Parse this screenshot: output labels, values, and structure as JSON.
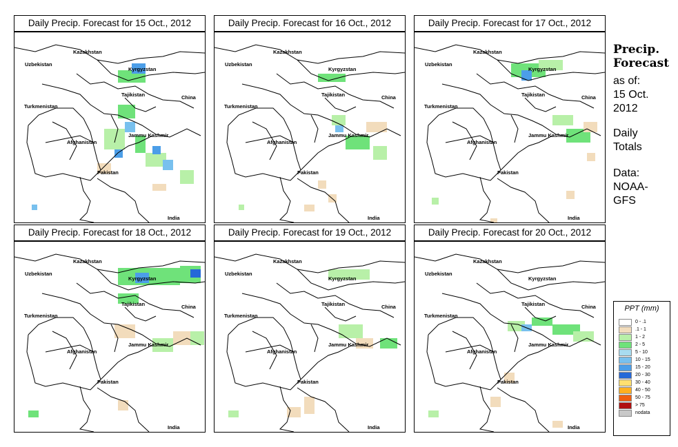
{
  "panels": [
    {
      "title": "Daily Precip. Forecast for  15 Oct., 2012"
    },
    {
      "title": "Daily Precip. Forecast for  16 Oct., 2012"
    },
    {
      "title": "Daily Precip. Forecast for  17 Oct., 2012"
    },
    {
      "title": "Daily Precip. Forecast for  18 Oct., 2012"
    },
    {
      "title": "Daily Precip. Forecast for  19 Oct., 2012"
    },
    {
      "title": "Daily Precip. Forecast for  20 Oct., 2012"
    }
  ],
  "regions": [
    "Kazakhstan",
    "Uzbekistan",
    "Kyrgyzstan",
    "Tajikistan",
    "China",
    "Turkmenistan",
    "Jammu Kashmir",
    "Afghanistan",
    "Pakistan",
    "India"
  ],
  "sidebar": {
    "title_line1": "Precip.",
    "title_line2": "Forecast",
    "asof": "as of:",
    "date1": "15 Oct.",
    "date2": "2012",
    "totals1": "Daily",
    "totals2": "Totals",
    "data1": "Data:",
    "data2": "NOAA-",
    "data3": "GFS"
  },
  "legend": {
    "title": "PPT (mm)",
    "items": [
      {
        "label": "0 - .1",
        "color": "#ffffff"
      },
      {
        "label": ".1 - 1",
        "color": "#f2dcbc"
      },
      {
        "label": "1 - 2",
        "color": "#b8f0a8"
      },
      {
        "label": "2 - 5",
        "color": "#6fe27a"
      },
      {
        "label": "5 - 10",
        "color": "#a8dcf0"
      },
      {
        "label": "10 - 15",
        "color": "#78c0ee"
      },
      {
        "label": "15 - 20",
        "color": "#4c9ee8"
      },
      {
        "label": "20 - 30",
        "color": "#2468d8"
      },
      {
        "label": "30 - 40",
        "color": "#ffe070"
      },
      {
        "label": "40 - 50",
        "color": "#ffb020"
      },
      {
        "label": "50 - 75",
        "color": "#f06010"
      },
      {
        "label": "> 75",
        "color": "#b01010"
      },
      {
        "label": "nodata",
        "color": "#c8c8c8"
      }
    ]
  }
}
